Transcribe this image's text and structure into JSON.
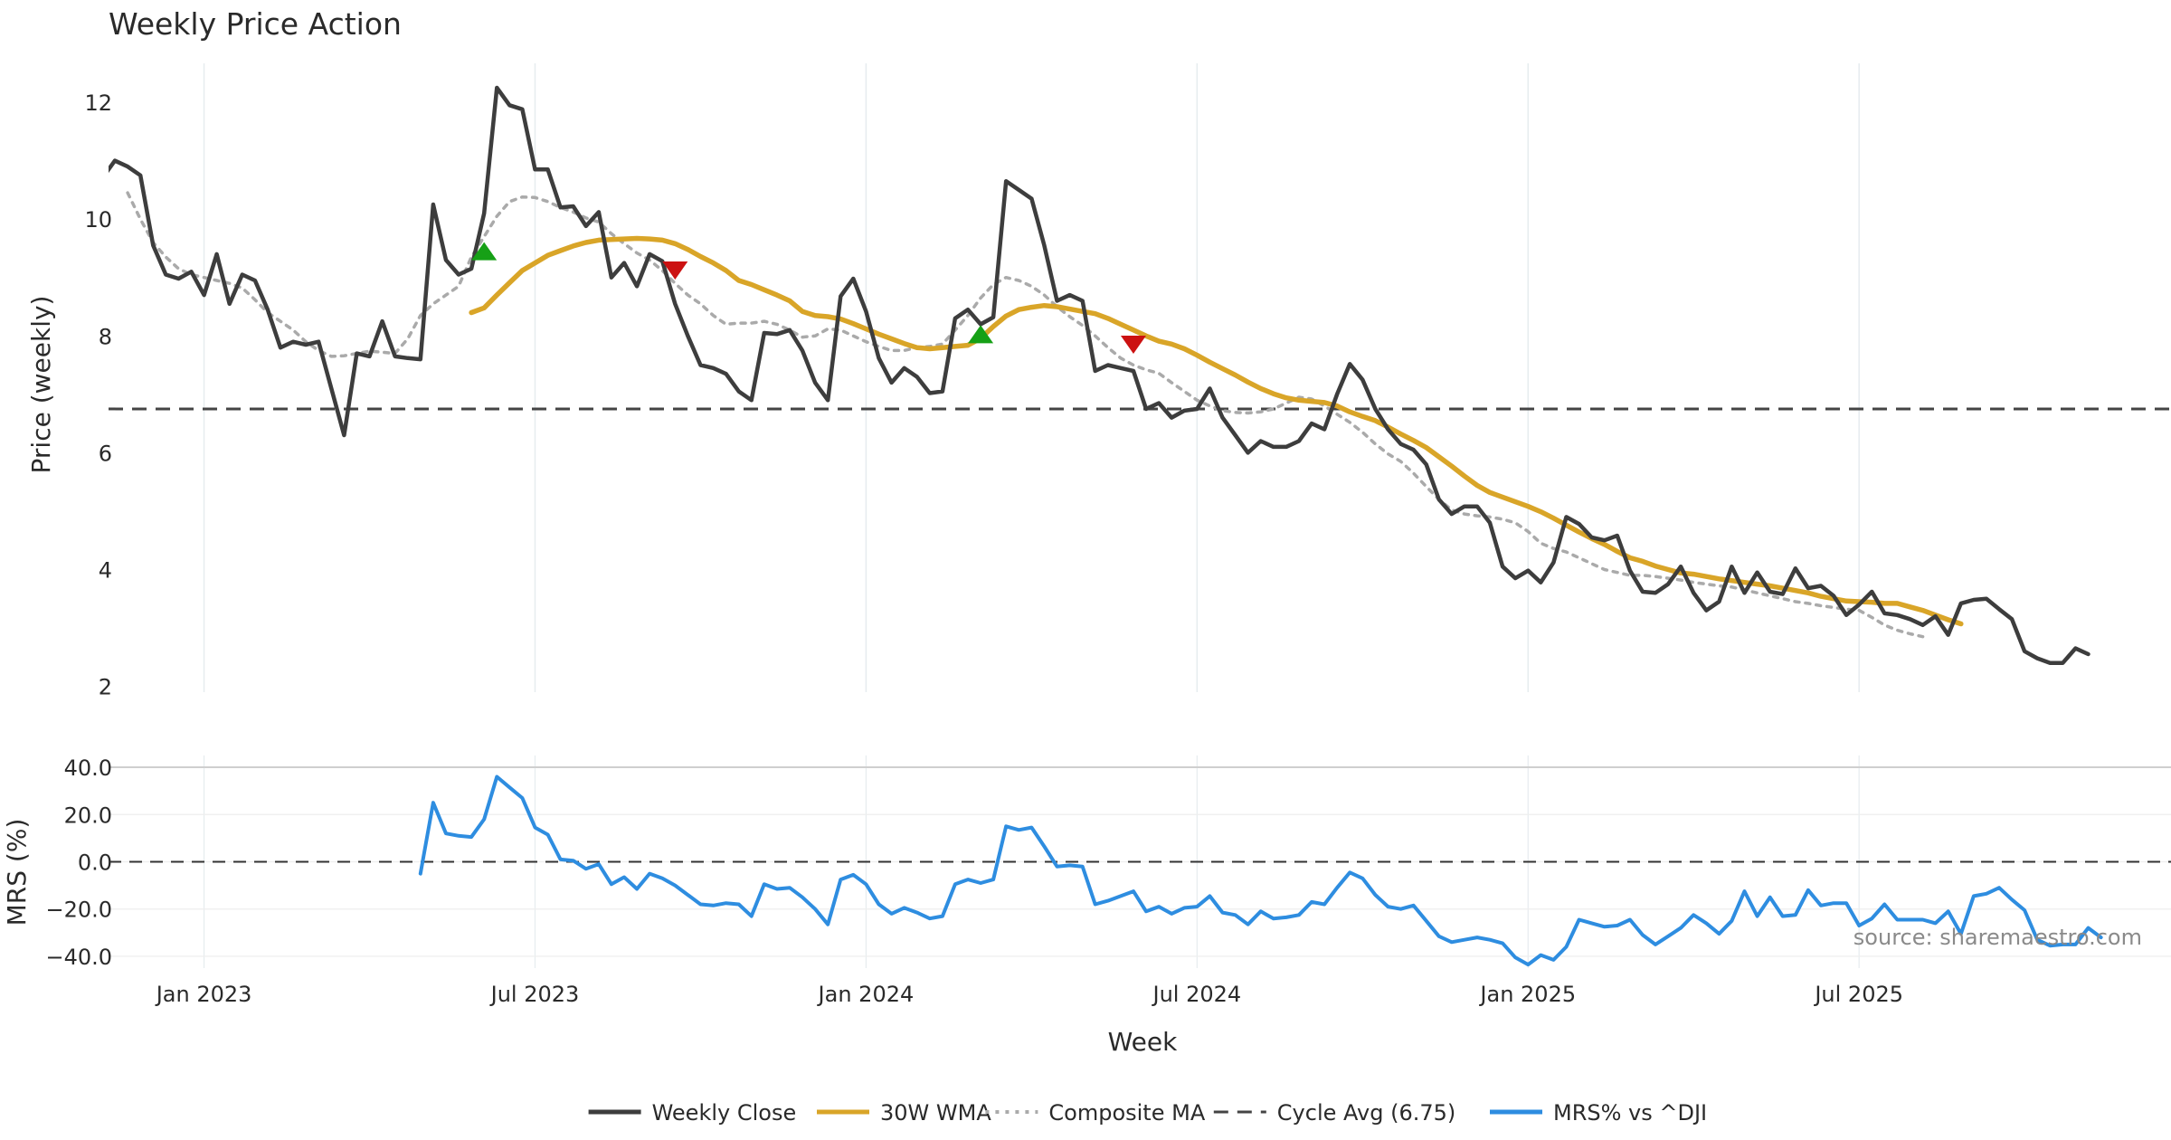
{
  "colors": {
    "close": "#3d3d3d",
    "wma": "#d9a528",
    "composite": "#aaaaaa",
    "cycle": "#444444",
    "mrs": "#2e8de0",
    "buy": "#16a016",
    "sell": "#cc1111",
    "grid": "#e6ecef",
    "source": "#8a8a8a"
  },
  "chart_data": [
    {
      "type": "line",
      "title": "Weekly Price Action",
      "ylabel": "Price (weekly)",
      "xlabel": "Week",
      "xlim": [
        -7.5,
        154.5
      ],
      "ylim": [
        1.9,
        12.9
      ],
      "yticks": [
        2,
        4,
        6,
        8,
        10,
        12
      ],
      "x_ticks": [
        {
          "x": 0,
          "label": "Jan 2023"
        },
        {
          "x": 26,
          "label": "Jul 2023"
        },
        {
          "x": 52,
          "label": "Jan 2024"
        },
        {
          "x": 78,
          "label": "Jul 2024"
        },
        {
          "x": 104,
          "label": "Jan 2025"
        },
        {
          "x": 130,
          "label": "Jul 2025"
        }
      ],
      "grid": true,
      "reference_line": {
        "name": "Cycle Avg (6.75)",
        "y": 6.75,
        "style": "dashed"
      },
      "series": [
        {
          "name": "Weekly Close",
          "x_start": -8,
          "values": [
            10.7,
            11.0,
            10.9,
            10.75,
            9.55,
            9.05,
            8.98,
            9.1,
            8.7,
            9.4,
            8.55,
            9.05,
            8.95,
            8.45,
            7.8,
            7.9,
            7.85,
            7.9,
            7.1,
            6.3,
            7.7,
            7.65,
            8.25,
            7.65,
            7.62,
            7.6,
            10.25,
            9.3,
            9.05,
            9.15,
            10.1,
            12.25,
            11.95,
            11.88,
            10.85,
            10.85,
            10.2,
            10.22,
            9.88,
            10.12,
            9.0,
            9.25,
            8.85,
            9.4,
            9.28,
            8.55,
            8.0,
            7.5,
            7.45,
            7.35,
            7.05,
            6.9,
            8.05,
            8.03,
            8.1,
            7.75,
            7.2,
            6.9,
            8.68,
            8.98,
            8.42,
            7.62,
            7.2,
            7.45,
            7.3,
            7.02,
            7.05,
            8.3,
            8.45,
            8.2,
            8.32,
            10.65,
            10.5,
            10.35,
            9.55,
            8.6,
            8.7,
            8.6,
            7.4,
            7.5,
            7.45,
            7.4,
            6.75,
            6.85,
            6.6,
            6.72,
            6.75,
            7.1,
            6.6,
            6.3,
            6.0,
            6.2,
            6.1,
            6.1,
            6.2,
            6.5,
            6.4,
            7.0,
            7.52,
            7.25,
            6.75,
            6.4,
            6.15,
            6.05,
            5.8,
            5.2,
            4.95,
            5.08,
            5.08,
            4.8,
            4.05,
            3.85,
            3.98,
            3.78,
            4.12,
            4.9,
            4.78,
            4.55,
            4.5,
            4.58,
            3.98,
            3.62,
            3.6,
            3.75,
            4.05,
            3.6,
            3.3,
            3.45,
            4.05,
            3.6,
            3.95,
            3.62,
            3.58,
            4.02,
            3.68,
            3.72,
            3.55,
            3.22,
            3.4,
            3.62,
            3.25,
            3.22,
            3.15,
            3.05,
            3.2,
            2.88,
            3.42,
            3.48,
            3.5,
            3.32,
            3.15,
            2.6,
            2.48,
            2.4,
            2.4,
            2.65,
            2.55
          ]
        },
        {
          "name": "30W WMA",
          "x_start": 21,
          "values": [
            8.4,
            8.48,
            8.7,
            8.91,
            9.12,
            9.25,
            9.38,
            9.46,
            9.54,
            9.6,
            9.64,
            9.65,
            9.66,
            9.67,
            9.66,
            9.64,
            9.58,
            9.48,
            9.36,
            9.25,
            9.12,
            8.95,
            8.88,
            8.79,
            8.7,
            8.6,
            8.42,
            8.35,
            8.33,
            8.29,
            8.21,
            8.12,
            8.03,
            7.95,
            7.87,
            7.8,
            7.78,
            7.8,
            7.82,
            7.84,
            7.96,
            8.16,
            8.34,
            8.45,
            8.49,
            8.52,
            8.5,
            8.46,
            8.42,
            8.38,
            8.3,
            8.2,
            8.1,
            8.0,
            7.91,
            7.86,
            7.78,
            7.67,
            7.55,
            7.44,
            7.33,
            7.21,
            7.1,
            7.01,
            6.94,
            6.9,
            6.88,
            6.86,
            6.8,
            6.7,
            6.62,
            6.55,
            6.44,
            6.32,
            6.21,
            6.09,
            5.93,
            5.77,
            5.6,
            5.44,
            5.32,
            5.24,
            5.16,
            5.08,
            4.99,
            4.88,
            4.76,
            4.64,
            4.53,
            4.43,
            4.31,
            4.2,
            4.14,
            4.06,
            4.0,
            3.94,
            3.92,
            3.88,
            3.84,
            3.81,
            3.78,
            3.75,
            3.72,
            3.68,
            3.64,
            3.6,
            3.54,
            3.5,
            3.46,
            3.45,
            3.44,
            3.42,
            3.42,
            3.36,
            3.3,
            3.22,
            3.14,
            3.07
          ]
        },
        {
          "name": "Composite MA",
          "x_start": -6,
          "values": [
            10.45,
            10.0,
            9.6,
            9.35,
            9.15,
            9.05,
            9.0,
            8.95,
            8.9,
            8.82,
            8.62,
            8.4,
            8.25,
            8.1,
            7.9,
            7.75,
            7.65,
            7.66,
            7.7,
            7.74,
            7.72,
            7.7,
            7.95,
            8.35,
            8.55,
            8.7,
            8.85,
            9.35,
            9.7,
            10.05,
            10.3,
            10.38,
            10.37,
            10.3,
            10.2,
            10.12,
            10.02,
            9.95,
            9.75,
            9.58,
            9.42,
            9.3,
            9.12,
            8.9,
            8.7,
            8.55,
            8.35,
            8.2,
            8.22,
            8.22,
            8.25,
            8.2,
            8.1,
            7.98,
            8.0,
            8.12,
            8.1,
            8.0,
            7.9,
            7.82,
            7.75,
            7.75,
            7.8,
            7.82,
            7.86,
            8.1,
            8.35,
            8.65,
            8.88,
            9.0,
            8.95,
            8.85,
            8.7,
            8.5,
            8.33,
            8.18,
            8.0,
            7.8,
            7.62,
            7.5,
            7.42,
            7.36,
            7.2,
            7.05,
            6.9,
            6.8,
            6.72,
            6.69,
            6.68,
            6.7,
            6.75,
            6.85,
            6.95,
            6.92,
            6.8,
            6.66,
            6.52,
            6.35,
            6.15,
            5.98,
            5.85,
            5.65,
            5.42,
            5.2,
            5.02,
            4.95,
            4.92,
            4.9,
            4.86,
            4.8,
            4.65,
            4.45,
            4.36,
            4.3,
            4.2,
            4.1,
            4.0,
            3.95,
            3.9,
            3.9,
            3.88,
            3.85,
            3.82,
            3.78,
            3.75,
            3.72,
            3.7,
            3.65,
            3.6,
            3.55,
            3.5,
            3.45,
            3.42,
            3.38,
            3.35,
            3.32,
            3.3,
            3.18,
            3.05,
            2.96,
            2.9,
            2.85
          ]
        }
      ],
      "signals": [
        {
          "type": "buy",
          "x": 22,
          "y": 9.45
        },
        {
          "type": "sell",
          "x": 37,
          "y": 9.12
        },
        {
          "type": "buy",
          "x": 61,
          "y": 8.03
        },
        {
          "type": "sell",
          "x": 73,
          "y": 7.85
        }
      ]
    },
    {
      "type": "line",
      "ylabel": "MRS (%)",
      "ylim": [
        -45,
        45
      ],
      "yticks": [
        -40,
        -20,
        0,
        20,
        40
      ],
      "ytick_labels": [
        "−40.0",
        "−20.0",
        "0.0",
        "20.0",
        "40.0"
      ],
      "zero_line": {
        "y": 0,
        "style": "dashed"
      },
      "series": [
        {
          "name": "MRS% vs ^DJI",
          "x_start": 17,
          "values": [
            -5,
            25,
            12,
            11,
            10.5,
            18,
            36,
            31.5,
            27,
            14.5,
            11.5,
            1,
            0.5,
            -3,
            -1,
            -9.5,
            -6.5,
            -11.5,
            -5,
            -7,
            -10,
            -14,
            -18,
            -18.5,
            -17.5,
            -18,
            -23,
            -9.5,
            -11.5,
            -11,
            -15,
            -20,
            -26.5,
            -7.5,
            -5.5,
            -9.5,
            -18,
            -22,
            -19.5,
            -21.5,
            -24,
            -23,
            -9.5,
            -7.5,
            -9,
            -7.5,
            15,
            13.5,
            14.5,
            6.5,
            -2,
            -1.5,
            -2,
            -18,
            -16.5,
            -14.5,
            -12.5,
            -21,
            -19,
            -22,
            -19.5,
            -19,
            -14.5,
            -21.5,
            -22.5,
            -26.5,
            -21,
            -24,
            -23.5,
            -22.5,
            -17,
            -18,
            -11,
            -4.5,
            -7,
            -14,
            -19,
            -20,
            -18.5,
            -25,
            -31.5,
            -34,
            -33,
            -32,
            -33,
            -34.5,
            -40.5,
            -43.5,
            -39.5,
            -41.5,
            -36,
            -24.5,
            -26,
            -27.5,
            -27,
            -24.5,
            -31,
            -35,
            -31.5,
            -28,
            -22.5,
            -26,
            -30.5,
            -25,
            -12.5,
            -23,
            -15,
            -23,
            -22.5,
            -12,
            -18.5,
            -17.5,
            -17.5,
            -27,
            -24,
            -18,
            -24.5,
            -24.5,
            -24.5,
            -26,
            -21,
            -30.5,
            -14.5,
            -13.5,
            -11,
            -16,
            -20.5,
            -33,
            -35.5,
            -35,
            -35,
            -28,
            -32
          ]
        }
      ]
    }
  ],
  "annotations": {
    "source": "source: sharemaestro.com"
  },
  "legend": {
    "placement": "bottom-center",
    "items": [
      {
        "label": "Weekly Close",
        "style": "solid",
        "color_key": "close"
      },
      {
        "label": "30W WMA",
        "style": "solid",
        "color_key": "wma"
      },
      {
        "label": "Composite MA",
        "style": "dotted",
        "color_key": "composite"
      },
      {
        "label": "Cycle Avg (6.75)",
        "style": "dashed",
        "color_key": "cycle"
      },
      {
        "label": "MRS% vs ^DJI",
        "style": "solid",
        "color_key": "mrs"
      }
    ]
  }
}
